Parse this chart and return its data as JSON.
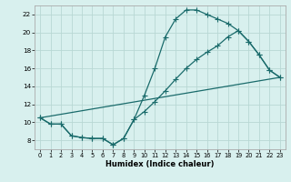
{
  "xlabel": "Humidex (Indice chaleur)",
  "bg_color": "#d8f0ee",
  "grid_color": "#b8d8d4",
  "line_color": "#1a6b6b",
  "xlim": [
    -0.5,
    23.5
  ],
  "ylim": [
    7.0,
    23.0
  ],
  "yticks": [
    8,
    10,
    12,
    14,
    16,
    18,
    20,
    22
  ],
  "xticks": [
    0,
    1,
    2,
    3,
    4,
    5,
    6,
    7,
    8,
    9,
    10,
    11,
    12,
    13,
    14,
    15,
    16,
    17,
    18,
    19,
    20,
    21,
    22,
    23
  ],
  "line1_x": [
    0,
    1,
    2,
    3,
    4,
    5,
    6,
    7,
    8,
    9,
    10,
    11,
    12,
    13,
    14,
    15,
    16,
    17,
    18,
    19,
    20,
    21,
    22,
    23
  ],
  "line1_y": [
    10.5,
    9.8,
    9.8,
    8.5,
    8.3,
    8.2,
    8.2,
    7.5,
    8.2,
    10.3,
    13.0,
    16.0,
    19.5,
    21.5,
    22.5,
    22.5,
    22.0,
    21.5,
    21.0,
    20.2,
    19.0,
    17.5,
    15.8,
    15.0
  ],
  "line2_x": [
    0,
    1,
    2,
    3,
    4,
    5,
    6,
    7,
    8,
    9,
    10,
    11,
    12,
    13,
    14,
    15,
    16,
    17,
    18,
    19,
    20,
    21,
    22,
    23
  ],
  "line2_y": [
    10.5,
    9.8,
    9.8,
    8.5,
    8.3,
    8.2,
    8.2,
    7.5,
    8.2,
    10.3,
    11.2,
    12.3,
    13.5,
    14.8,
    16.0,
    17.0,
    17.8,
    18.5,
    19.5,
    20.2,
    19.0,
    17.5,
    15.8,
    15.0
  ],
  "line3_x": [
    0,
    23
  ],
  "line3_y": [
    10.5,
    15.0
  ]
}
